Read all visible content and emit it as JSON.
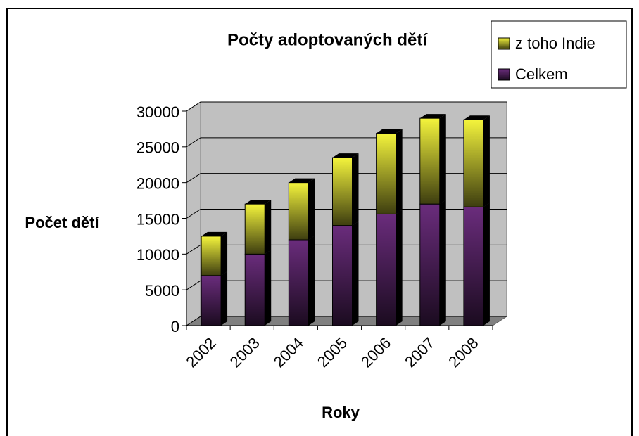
{
  "chart_data": {
    "type": "bar",
    "stacked": true,
    "title": "Počty adoptovaných dětí",
    "x_label": "Roky",
    "y_label": "Počet dětí",
    "categories": [
      "2002",
      "2003",
      "2004",
      "2005",
      "2006",
      "2007",
      "2008"
    ],
    "series": [
      {
        "name": "Celkem",
        "color": "#6a2c7c",
        "values": [
          7000,
          10000,
          12000,
          14000,
          15600,
          17000,
          16600
        ]
      },
      {
        "name": "z toho Indie",
        "color": "#f4f43c",
        "values": [
          5500,
          7000,
          8000,
          9500,
          11300,
          12000,
          12200
        ]
      }
    ],
    "ylim": [
      0,
      30000
    ],
    "yticks": [
      0,
      5000,
      10000,
      15000,
      20000,
      25000,
      30000
    ],
    "grid": true,
    "legend": "top-right"
  }
}
